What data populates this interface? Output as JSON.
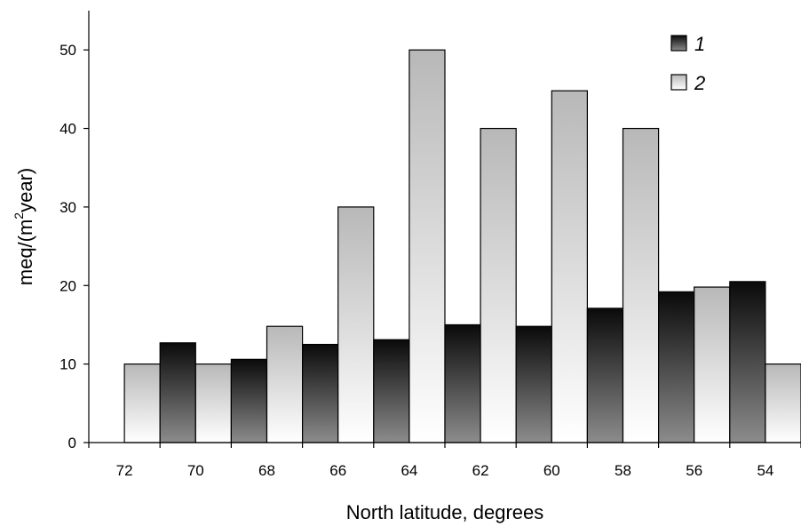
{
  "chart_data": {
    "type": "bar",
    "categories": [
      "72",
      "70",
      "68",
      "66",
      "64",
      "62",
      "60",
      "58",
      "56",
      "54"
    ],
    "series": [
      {
        "name": "1",
        "values": [
          null,
          12.7,
          10.6,
          12.5,
          13.1,
          15.0,
          14.8,
          17.1,
          19.2,
          20.5
        ]
      },
      {
        "name": "2",
        "values": [
          10,
          10,
          14.8,
          30,
          50,
          40,
          44.8,
          40,
          19.8,
          10
        ]
      }
    ],
    "xlabel": "North latitude, degrees",
    "ylabel": {
      "base": "meq/(m",
      "sup": "2",
      "tail": "year)"
    },
    "ylim": [
      0,
      55
    ],
    "yticks": [
      "0",
      "10",
      "20",
      "30",
      "40",
      "50"
    ],
    "legend_position": "top-right",
    "grid": false,
    "colors": {
      "series1_dark": "#0a0a0a",
      "series1_light": "#8c8c8c",
      "series2_dark": "#b8b8b8",
      "series2_light": "#ffffff"
    }
  }
}
